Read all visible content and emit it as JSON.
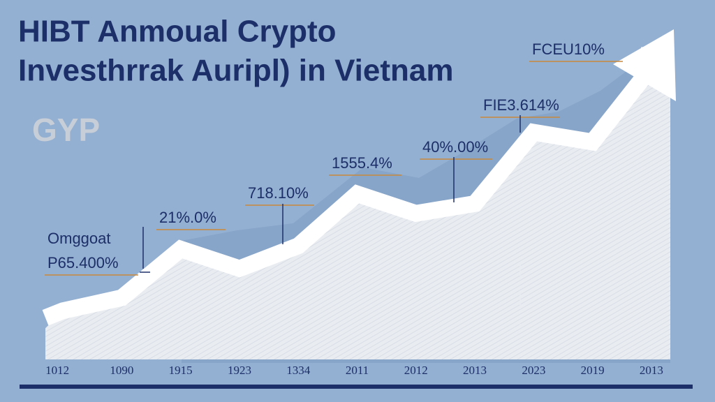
{
  "chart_data": {
    "type": "area",
    "title": "HIBT Anmoual Crypto",
    "subtitle": "Investhrrak Auripl) in Vietnam",
    "logo": "GYP",
    "categories": [
      "1012",
      "1090",
      "1915",
      "1923",
      "1334",
      "2011",
      "2012",
      "2013",
      "2023",
      "2019",
      "2013"
    ],
    "values": [
      15,
      19,
      34,
      28,
      35,
      51,
      45,
      48,
      70,
      67,
      90
    ],
    "ylim": [
      0,
      100
    ],
    "color": "#ffffff",
    "annotations": [
      "FCEU10%",
      "FIE3.614%",
      "40%.00%",
      "1555.4%",
      "718.10%",
      "21%.0%",
      "Omggoat",
      "P65.400%"
    ]
  }
}
